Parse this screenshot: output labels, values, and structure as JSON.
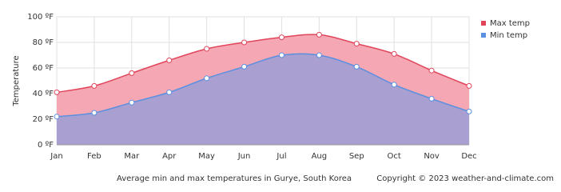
{
  "chart_data": {
    "type": "area",
    "y_label": "Temperature",
    "caption": "Average min and max temperatures in Gurye, South Korea",
    "copyright": "Copyright © 2023  weather-and-climate.com",
    "categories": [
      "Jan",
      "Feb",
      "Mar",
      "Apr",
      "May",
      "Jun",
      "Jul",
      "Aug",
      "Sep",
      "Oct",
      "Nov",
      "Dec"
    ],
    "series": [
      {
        "name": "Max temp",
        "color": "#e0455a",
        "fill": "#f5a8b3",
        "values": [
          41,
          46,
          56,
          66,
          75,
          80,
          84,
          86,
          79,
          71,
          58,
          46
        ]
      },
      {
        "name": "Min temp",
        "color": "#5b8fe0",
        "fill": "#a99fd0",
        "values": [
          22,
          25,
          33,
          41,
          52,
          61,
          70,
          70,
          61,
          47,
          36,
          26
        ]
      }
    ],
    "ylim": [
      0,
      100
    ],
    "yticks": [
      {
        "value": 0,
        "label": "0 ºF"
      },
      {
        "value": 20,
        "label": "20 ºF"
      },
      {
        "value": 40,
        "label": "40 ºF"
      },
      {
        "value": 60,
        "label": "60 ºF"
      },
      {
        "value": 80,
        "label": "80 ºF"
      },
      {
        "value": 100,
        "label": "100 ºF"
      }
    ],
    "grid": true,
    "legend": "top-right"
  }
}
